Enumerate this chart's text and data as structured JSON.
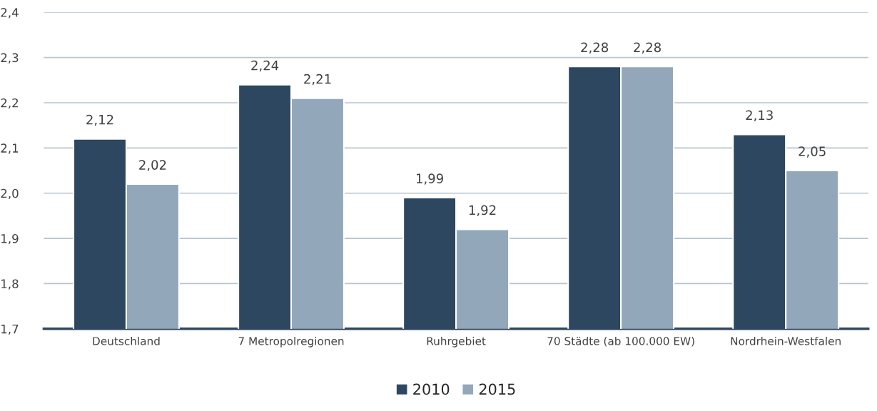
{
  "chart_data": {
    "type": "bar",
    "categories": [
      "Deutschland",
      "7 Metropolregionen",
      "Ruhrgebiet",
      "70 Städte (ab 100.000 EW)",
      "Nordrhein-Westfalen"
    ],
    "series": [
      {
        "name": "2010",
        "color": "#2e4760",
        "values": [
          2.12,
          2.24,
          1.99,
          2.28,
          2.13
        ],
        "value_labels": [
          "2,12",
          "2,24",
          "1,99",
          "2,28",
          "2,13"
        ]
      },
      {
        "name": "2015",
        "color": "#93a7ba",
        "values": [
          2.02,
          2.21,
          1.92,
          2.28,
          2.05
        ],
        "value_labels": [
          "2,02",
          "2,21",
          "1,92",
          "2,28",
          "2,05"
        ]
      }
    ],
    "ylim": [
      1.7,
      2.4
    ],
    "yticks": [
      {
        "value": 1.7,
        "label": "1,7"
      },
      {
        "value": 1.8,
        "label": "1,8"
      },
      {
        "value": 1.9,
        "label": "1,9"
      },
      {
        "value": 2.0,
        "label": "2,0"
      },
      {
        "value": 2.1,
        "label": "2,1"
      },
      {
        "value": 2.2,
        "label": "2,2"
      },
      {
        "value": 2.3,
        "label": "2,3"
      },
      {
        "value": 2.4,
        "label": "2,4"
      }
    ],
    "grid": "y",
    "legend": "bottom"
  }
}
